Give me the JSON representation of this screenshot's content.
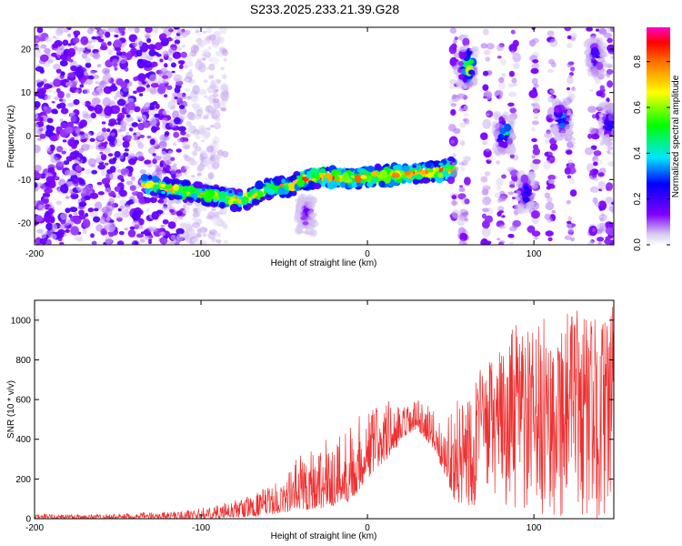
{
  "title": "S233.2025.233.21.39.G28",
  "colors": {
    "snr_line": "#ee3030",
    "axis": "#000000",
    "background": "#ffffff"
  },
  "chart_data": [
    {
      "type": "heatmap",
      "name": "spectrogram",
      "xlabel": "Height of straight line (km)",
      "ylabel": "Frequency (Hz)",
      "xlim": [
        -200,
        148
      ],
      "ylim": [
        -25,
        25
      ],
      "xticks": [
        -200,
        -100,
        0,
        100
      ],
      "yticks": [
        -20,
        -10,
        0,
        10,
        20
      ],
      "colorbar": {
        "label": "Normalized spectral amplitude",
        "range": [
          0,
          0.95
        ],
        "ticks": [
          0.0,
          0.2,
          0.4,
          0.6,
          0.8
        ]
      },
      "ridge": {
        "description": "dominant frequency track vs height",
        "x": [
          -135,
          -120,
          -105,
          -90,
          -75,
          -60,
          -45,
          -40,
          -30,
          -15,
          0,
          15,
          30,
          45,
          52
        ],
        "y": [
          -11,
          -12,
          -13,
          -14,
          -15,
          -12,
          -11.5,
          -10,
          -9.5,
          -9.5,
          -9.5,
          -9,
          -8.5,
          -8,
          -7.5
        ]
      },
      "clusters": [
        {
          "x": 60,
          "y": 16,
          "amplitude": 0.9
        },
        {
          "x": 82,
          "y": 0.5,
          "amplitude": 0.6
        },
        {
          "x": 95,
          "y": -13,
          "amplitude": 0.35
        },
        {
          "x": 117,
          "y": 4,
          "amplitude": 0.45
        },
        {
          "x": 137,
          "y": 18,
          "amplitude": 0.3
        },
        {
          "x": 145,
          "y": 3,
          "amplitude": 0.3
        },
        {
          "x": -37,
          "y": -18,
          "amplitude": 0.2
        }
      ],
      "noise_region": {
        "x_from": -200,
        "x_to": -110
      }
    },
    {
      "type": "line",
      "name": "snr",
      "xlabel": "Height of straight line (km)",
      "ylabel": "SNR (10 * v/v)",
      "xlim": [
        -200,
        148
      ],
      "ylim": [
        0,
        1100
      ],
      "xticks": [
        -200,
        -100,
        0,
        100
      ],
      "yticks": [
        0,
        200,
        400,
        600,
        800,
        1000
      ],
      "envelope": {
        "description": "approximate envelope of the SNR trace (low / high per height)",
        "x": [
          -200,
          -150,
          -110,
          -90,
          -70,
          -50,
          -40,
          -20,
          -10,
          0,
          10,
          20,
          30,
          40,
          45,
          50,
          55,
          60,
          70,
          80,
          90,
          100,
          110,
          120,
          130,
          140,
          148
        ],
        "low": [
          0,
          0,
          0,
          0,
          10,
          30,
          40,
          60,
          90,
          200,
          280,
          380,
          450,
          350,
          250,
          150,
          30,
          0,
          150,
          100,
          0,
          0,
          0,
          0,
          0,
          0,
          0
        ],
        "high": [
          25,
          25,
          40,
          70,
          120,
          200,
          350,
          420,
          500,
          560,
          620,
          560,
          600,
          550,
          450,
          580,
          600,
          700,
          780,
          850,
          1000,
          950,
          1050,
          1080,
          1060,
          1000,
          1080
        ]
      }
    }
  ]
}
